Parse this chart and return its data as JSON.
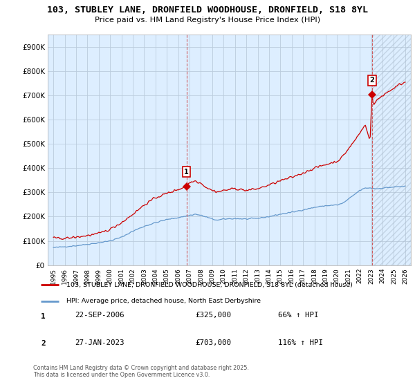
{
  "title": "103, STUBLEY LANE, DRONFIELD WOODHOUSE, DRONFIELD, S18 8YL",
  "subtitle": "Price paid vs. HM Land Registry's House Price Index (HPI)",
  "ylim": [
    0,
    950000
  ],
  "yticks": [
    0,
    100000,
    200000,
    300000,
    400000,
    500000,
    600000,
    700000,
    800000,
    900000
  ],
  "ytick_labels": [
    "£0",
    "£100K",
    "£200K",
    "£300K",
    "£400K",
    "£500K",
    "£600K",
    "£700K",
    "£800K",
    "£900K"
  ],
  "xlim_start": 1994.5,
  "xlim_end": 2026.5,
  "xticks": [
    1995,
    1996,
    1997,
    1998,
    1999,
    2000,
    2001,
    2002,
    2003,
    2004,
    2005,
    2006,
    2007,
    2008,
    2009,
    2010,
    2011,
    2012,
    2013,
    2014,
    2015,
    2016,
    2017,
    2018,
    2019,
    2020,
    2021,
    2022,
    2023,
    2024,
    2025,
    2026
  ],
  "sale1_x": 2006.73,
  "sale1_y": 325000,
  "sale2_x": 2023.07,
  "sale2_y": 703000,
  "sale1_date": "22-SEP-2006",
  "sale1_price": "£325,000",
  "sale1_hpi": "66% ↑ HPI",
  "sale2_date": "27-JAN-2023",
  "sale2_price": "£703,000",
  "sale2_hpi": "116% ↑ HPI",
  "red_line_color": "#cc0000",
  "blue_line_color": "#6699cc",
  "chart_bg_color": "#ddeeff",
  "grid_color": "#bbccdd",
  "legend_label_red": "103, STUBLEY LANE, DRONFIELD WOODHOUSE, DRONFIELD, S18 8YL (detached house)",
  "legend_label_blue": "HPI: Average price, detached house, North East Derbyshire",
  "footnote": "Contains HM Land Registry data © Crown copyright and database right 2025.\nThis data is licensed under the Open Government Licence v3.0."
}
